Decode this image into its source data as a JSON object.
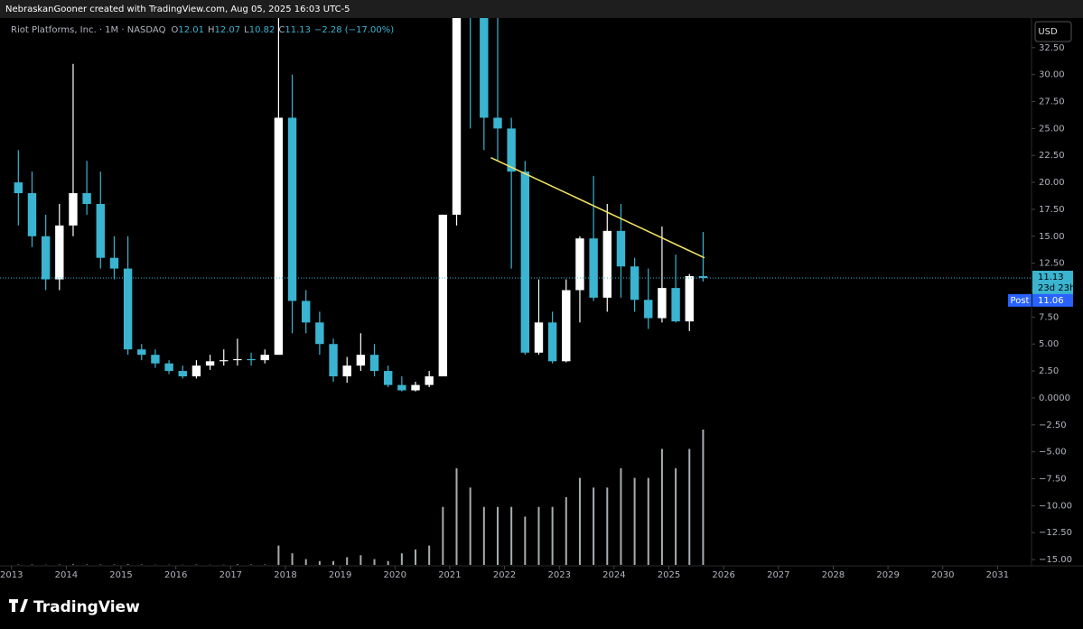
{
  "header": "NebraskanGooner created with TradingView.com, Aug 05, 2025 16:03 UTC-5",
  "chart_data": {
    "type": "candlestick",
    "symbol": "Riot Platforms, Inc. · 1M · NASDAQ",
    "ohlc": [
      {
        "label": "O",
        "value": 12.01
      },
      {
        "label": "H",
        "value": 12.07
      },
      {
        "label": "L",
        "value": 10.82
      },
      {
        "label": "C",
        "value": 11.13
      }
    ],
    "change": "−2.28 (−17.00%)",
    "currency": "USD",
    "x": [
      2013.125,
      2013.375,
      2013.625,
      2013.875,
      2014.125,
      2014.375,
      2014.625,
      2014.875,
      2015.125,
      2015.375,
      2015.625,
      2015.875,
      2016.125,
      2016.375,
      2016.625,
      2016.875,
      2017.125,
      2017.375,
      2017.625,
      2017.875,
      2018.125,
      2018.375,
      2018.625,
      2018.875,
      2019.125,
      2019.375,
      2019.625,
      2019.875,
      2020.125,
      2020.375,
      2020.625,
      2020.875,
      2021.125,
      2021.375,
      2021.625,
      2021.875,
      2022.125,
      2022.375,
      2022.625,
      2022.875,
      2023.125,
      2023.375,
      2023.625,
      2023.875,
      2024.125,
      2024.375,
      2024.625,
      2024.875,
      2025.125,
      2025.375,
      2025.625
    ],
    "open": [
      20,
      19,
      15,
      11,
      16,
      19,
      18,
      13,
      12,
      4.5,
      4,
      3.2,
      2.5,
      2,
      3,
      3.4,
      3.5,
      3.6,
      3.5,
      4,
      26,
      9,
      7,
      5,
      2,
      3,
      4,
      2.5,
      1.2,
      0.7,
      1.2,
      2,
      17,
      51,
      37,
      26,
      25,
      21,
      4.2,
      7,
      3.4,
      10,
      14.8,
      9.3,
      15.5,
      12.2,
      9.1,
      7.4,
      10.2,
      7.1,
      11.3
    ],
    "high": [
      23,
      21,
      17,
      18,
      31,
      22,
      21,
      15,
      15,
      5,
      4.5,
      3.5,
      3,
      3.5,
      4,
      4.5,
      5.5,
      4.2,
      4.5,
      38,
      30,
      10,
      8,
      5.5,
      3.8,
      6,
      5,
      3,
      2,
      1.5,
      2.5,
      17,
      79,
      52,
      40,
      46,
      26,
      22,
      11,
      8,
      11,
      15,
      20.6,
      18,
      18,
      13,
      12,
      15.9,
      13.3,
      11.5,
      15.4
    ],
    "low": [
      16,
      14,
      10,
      10,
      15,
      17,
      12,
      11,
      4,
      3.5,
      2.8,
      2.2,
      1.8,
      1.8,
      2.6,
      3,
      3,
      3,
      3.2,
      4,
      6,
      6,
      4,
      1.5,
      1.4,
      2.5,
      2,
      1,
      0.6,
      0.6,
      1,
      2,
      16,
      25,
      23,
      22,
      12,
      4,
      4,
      3.2,
      3.3,
      7,
      9,
      8,
      9.3,
      8,
      6.4,
      7,
      7,
      6.2,
      10.8
    ],
    "close": [
      19,
      15,
      11,
      16,
      19,
      18,
      13,
      12,
      4.5,
      4,
      3.2,
      2.5,
      2,
      3,
      3.4,
      3.5,
      3.6,
      3.5,
      4,
      26,
      9,
      7,
      5,
      2,
      3,
      4,
      2.5,
      1.2,
      0.7,
      1.2,
      2,
      17,
      51,
      37,
      26,
      25,
      21,
      4.2,
      7,
      3.4,
      10,
      14.8,
      9.3,
      15.5,
      12.2,
      9.1,
      7.4,
      10.2,
      7.1,
      11.3,
      11.13
    ],
    "volume": [
      2,
      2,
      1,
      2,
      3,
      2,
      2,
      2,
      3,
      2,
      1,
      1,
      1,
      2,
      1,
      1,
      3,
      2,
      2,
      100,
      60,
      30,
      20,
      20,
      40,
      50,
      30,
      20,
      60,
      80,
      100,
      300,
      500,
      400,
      300,
      300,
      300,
      250,
      300,
      300,
      350,
      450,
      400,
      400,
      500,
      450,
      450,
      600,
      500,
      600,
      700
    ],
    "up_color": "#ffffff",
    "down_color": "#3ab4d0",
    "trendline": {
      "x": [
        2021.75,
        2025.65
      ],
      "y": [
        22.3,
        13
      ],
      "color": "#f5e663"
    },
    "last_price": 11.13,
    "countdown": "23d 23h",
    "post_label": "Post",
    "post_price": 11.06,
    "xlim": [
      2012.79,
      2031.62
    ],
    "xticks": [
      2013,
      2014,
      2015,
      2016,
      2017,
      2018,
      2019,
      2020,
      2021,
      2022,
      2023,
      2024,
      2025,
      2026,
      2027,
      2028,
      2029,
      2030,
      2031
    ],
    "ylim": [
      -15.5,
      35.25
    ],
    "yticks": [
      {
        "value": 32.5,
        "label": "32.50"
      },
      {
        "value": 30,
        "label": "30.00"
      },
      {
        "value": 27.5,
        "label": "27.50"
      },
      {
        "value": 25,
        "label": "25.00"
      },
      {
        "value": 22.5,
        "label": "22.50"
      },
      {
        "value": 20,
        "label": "20.00"
      },
      {
        "value": 17.5,
        "label": "17.50"
      },
      {
        "value": 15,
        "label": "15.00"
      },
      {
        "value": 12.5,
        "label": "12.50"
      },
      {
        "value": 10,
        "label": "10.00"
      },
      {
        "value": 7.5,
        "label": "7.50"
      },
      {
        "value": 5,
        "label": "5.00"
      },
      {
        "value": 2.5,
        "label": "2.50"
      },
      {
        "value": 0,
        "label": "0.0000"
      },
      {
        "value": -2.5,
        "label": "−2.50"
      },
      {
        "value": -5,
        "label": "−5.00"
      },
      {
        "value": -7.5,
        "label": "−7.50"
      },
      {
        "value": -10,
        "label": "−10.00"
      },
      {
        "value": -12.5,
        "label": "−12.50"
      },
      {
        "value": -15,
        "label": "−15.00"
      }
    ]
  },
  "footer": "TradingView"
}
